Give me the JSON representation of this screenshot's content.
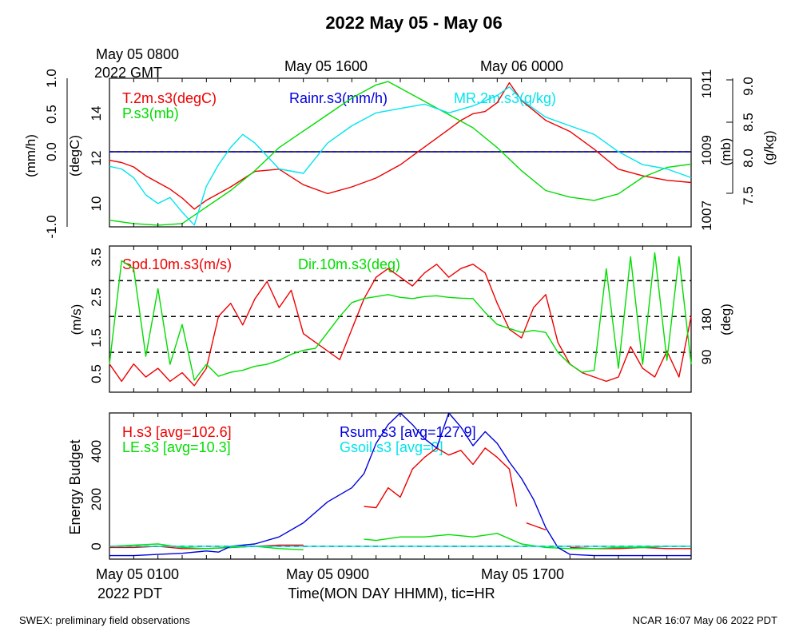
{
  "title": "2022 May 05 - May 06",
  "top_axis": {
    "ticks": [
      "May 05 0800",
      "May 05 1600",
      "May 06 0000"
    ],
    "first_tick_year": "2022 GMT"
  },
  "bottom_axis": {
    "ticks": [
      "May 05 0100",
      "May 05 0900",
      "May 05 1700"
    ],
    "first_tick_year": "2022 PDT",
    "label": "Time(MON DAY HHMM), tic=HR"
  },
  "footer": {
    "left": "SWEX: preliminary field observations",
    "right": "NCAR 16:07 May 06 2022 PDT"
  },
  "colors": {
    "red": "#ee0000",
    "green": "#00dd00",
    "blue": "#0000dd",
    "cyan": "#00e5ee",
    "black": "#000000"
  },
  "chart_data": [
    {
      "type": "line",
      "x_range_hours": [
        0,
        24
      ],
      "x_start": "May 05 0030 PDT",
      "axes": {
        "left_outer": {
          "label": "(mm/h)",
          "ticks": [
            "-1.0",
            "0.0",
            "0.5",
            "1.0"
          ],
          "range": [
            -1,
            1
          ]
        },
        "left_inner": {
          "label": "(degC)",
          "ticks": [
            "10",
            "12",
            "14"
          ],
          "range": [
            9,
            15.7
          ]
        },
        "right_inner": {
          "label": "(mb)",
          "ticks": [
            "1007",
            "1009",
            "1011"
          ],
          "range": [
            1006.9,
            1011.4
          ]
        },
        "right_outer": {
          "label": "(g/kg)",
          "ticks": [
            "7.5",
            "8.0",
            "8.5",
            "9.0"
          ],
          "range": [
            7.38,
            9.1
          ]
        }
      },
      "legend": [
        "T.2m.s3(degC)",
        "P.s3(mb)",
        "Rainr.s3(mm/h)",
        "MR.2m.s3(g/kg)"
      ],
      "series": [
        {
          "name": "T.2m.s3(degC)",
          "color": "red",
          "axis": "left_inner",
          "x": [
            0,
            0.5,
            1,
            1.5,
            2,
            2.5,
            3,
            3.5,
            4,
            5,
            6,
            7,
            8,
            9,
            10,
            11,
            12,
            13,
            14,
            14.5,
            15,
            15.5,
            16,
            16.5,
            17,
            18,
            19,
            20,
            21,
            22,
            23,
            24
          ],
          "values": [
            12.0,
            11.9,
            11.7,
            11.3,
            11.0,
            10.7,
            10.3,
            9.8,
            10.2,
            10.8,
            11.5,
            11.6,
            10.9,
            10.5,
            10.8,
            11.2,
            11.8,
            12.6,
            13.4,
            13.8,
            14.1,
            14.2,
            14.6,
            15.5,
            14.7,
            13.8,
            13.3,
            12.5,
            11.6,
            11.3,
            11.1,
            11.0
          ]
        },
        {
          "name": "P.s3(mb)",
          "color": "green",
          "axis": "right_inner",
          "x": [
            0,
            1,
            2,
            3,
            4,
            5,
            6,
            7,
            8,
            9,
            10,
            11,
            11.5,
            12,
            13,
            14,
            15,
            16,
            17,
            18,
            19,
            20,
            21,
            22,
            23,
            24
          ],
          "values": [
            1007.1,
            1007.0,
            1006.95,
            1007.0,
            1007.5,
            1008.0,
            1008.6,
            1009.3,
            1009.8,
            1010.3,
            1010.8,
            1011.2,
            1011.3,
            1011.1,
            1010.7,
            1010.3,
            1009.9,
            1009.3,
            1008.6,
            1008.0,
            1007.8,
            1007.7,
            1007.9,
            1008.4,
            1008.7,
            1008.8
          ]
        },
        {
          "name": "Rainr.s3(mm/h)",
          "color": "blue",
          "axis": "left_outer",
          "x": [
            0,
            24
          ],
          "values": [
            0.0,
            0.0
          ]
        },
        {
          "name": "MR.2m.s3(g/kg)",
          "color": "cyan",
          "axis": "right_outer",
          "x": [
            0,
            0.5,
            1,
            1.5,
            2,
            2.5,
            3,
            3.5,
            4,
            4.5,
            5,
            5.5,
            6,
            7,
            8,
            9,
            10,
            11,
            12,
            13,
            14,
            15,
            16,
            16.5,
            17,
            18,
            19,
            20,
            21,
            22,
            23,
            24
          ],
          "values": [
            8.08,
            8.05,
            7.95,
            7.75,
            7.65,
            7.72,
            7.55,
            7.4,
            7.85,
            8.1,
            8.3,
            8.45,
            8.35,
            8.05,
            8.0,
            8.35,
            8.55,
            8.7,
            8.75,
            8.8,
            8.7,
            8.78,
            8.9,
            9.0,
            8.85,
            8.65,
            8.55,
            8.45,
            8.25,
            8.1,
            8.05,
            7.95
          ]
        }
      ]
    },
    {
      "type": "line",
      "x_range_hours": [
        0,
        24
      ],
      "axes": {
        "left": {
          "label": "(m/s)",
          "ticks": [
            "0.5",
            "1.5",
            "2.5",
            "3.5"
          ],
          "range": [
            0.25,
            3.62
          ]
        },
        "right": {
          "label": "(deg)",
          "ticks": [
            "90",
            "180"
          ],
          "range": [
            -10,
            357
          ]
        }
      },
      "reference_lines_deg": [
        90,
        180,
        270
      ],
      "legend": [
        "Spd.10m.s3(m/s)",
        "Dir.10m.s3(deg)"
      ],
      "series": [
        {
          "name": "Spd.10m.s3(m/s)",
          "color": "red",
          "axis": "left",
          "x": [
            0,
            0.5,
            1,
            1.5,
            2,
            2.5,
            3,
            3.5,
            4,
            4.5,
            5,
            5.5,
            6,
            6.5,
            7,
            7.5,
            8,
            8.5,
            9,
            9.5,
            10,
            10.5,
            11,
            11.5,
            12,
            12.5,
            13,
            13.5,
            14,
            14.5,
            15,
            15.5,
            16,
            16.5,
            17,
            17.5,
            18,
            18.5,
            19,
            19.5,
            20,
            20.5,
            21,
            21.5,
            22,
            22.5,
            23,
            23.5,
            24
          ],
          "values": [
            0.9,
            0.5,
            0.9,
            0.6,
            0.8,
            0.5,
            0.7,
            0.4,
            0.8,
            2.0,
            2.3,
            1.8,
            2.4,
            2.8,
            2.2,
            2.6,
            1.6,
            1.4,
            1.2,
            1.0,
            1.7,
            2.4,
            2.9,
            3.1,
            2.9,
            2.7,
            3.0,
            3.2,
            2.9,
            3.1,
            3.2,
            3.0,
            2.3,
            1.7,
            1.5,
            2.2,
            2.5,
            1.4,
            0.9,
            0.7,
            0.6,
            0.5,
            0.6,
            1.3,
            0.8,
            0.6,
            1.2,
            0.6,
            2.0
          ]
        },
        {
          "name": "Dir.10m.s3(deg)",
          "color": "green",
          "axis": "right",
          "x": [
            0,
            0.5,
            1,
            1.5,
            2,
            2.5,
            3,
            3.5,
            4,
            4.5,
            5,
            5.5,
            6,
            6.5,
            7,
            7.5,
            8,
            8.5,
            9,
            9.5,
            10,
            10.5,
            11,
            11.5,
            12,
            12.5,
            13,
            13.5,
            14,
            14.5,
            15,
            15.5,
            16,
            16.5,
            17,
            17.5,
            18,
            18.5,
            19,
            19.5,
            20,
            20.5,
            21,
            21.5,
            22,
            22.5,
            23,
            23.5,
            24
          ],
          "values": [
            60,
            320,
            300,
            80,
            250,
            60,
            160,
            20,
            60,
            30,
            40,
            45,
            55,
            60,
            70,
            85,
            95,
            100,
            140,
            180,
            215,
            225,
            230,
            235,
            228,
            225,
            230,
            232,
            228,
            226,
            225,
            190,
            160,
            150,
            140,
            145,
            140,
            90,
            60,
            40,
            45,
            300,
            50,
            330,
            60,
            340,
            70,
            330,
            60
          ]
        }
      ]
    },
    {
      "type": "line",
      "x_range_hours": [
        0,
        24
      ],
      "axes": {
        "left": {
          "label": "Energy Budget",
          "ticks": [
            "0",
            "200",
            "400"
          ],
          "range": [
            -55,
            570
          ]
        }
      },
      "reference_lines": [
        0
      ],
      "legend": [
        "H.s3 [avg=102.6]",
        "LE.s3 [avg=10.3]",
        "Rsum.s3 [avg=127.9]",
        "Gsoil.s3 [avg=0]"
      ],
      "series": [
        {
          "name": "H.s3 [avg=102.6]",
          "color": "red",
          "x": [
            0,
            1,
            2,
            3,
            4,
            5,
            6,
            7,
            8,
            null,
            10.5,
            11,
            11.5,
            12,
            12.5,
            13,
            13.5,
            14,
            14.5,
            15,
            15.5,
            16,
            16.5,
            16.8,
            null,
            17.2,
            18,
            null,
            19,
            20,
            21,
            22,
            23,
            24
          ],
          "values": [
            -5,
            -5,
            0,
            -10,
            -10,
            -5,
            0,
            5,
            5,
            null,
            170,
            165,
            250,
            210,
            330,
            380,
            420,
            390,
            410,
            350,
            420,
            380,
            330,
            170,
            null,
            100,
            70,
            null,
            -5,
            -10,
            -10,
            -5,
            -10,
            -10
          ]
        },
        {
          "name": "LE.s3 [avg=10.3]",
          "color": "green",
          "x": [
            0,
            1,
            2,
            3,
            4,
            5,
            6,
            7,
            8,
            null,
            10.5,
            11,
            12,
            13,
            14,
            15,
            16,
            17,
            18,
            19,
            20,
            21,
            22,
            23,
            24
          ],
          "values": [
            0,
            5,
            10,
            -5,
            -10,
            -5,
            0,
            -10,
            -15,
            null,
            30,
            25,
            40,
            40,
            50,
            40,
            55,
            10,
            -5,
            -10,
            -10,
            -5,
            -5,
            0,
            0
          ]
        },
        {
          "name": "Rsum.s3 [avg=127.9]",
          "color": "blue",
          "x": [
            0,
            1,
            2,
            3,
            4,
            4.5,
            5,
            6,
            7,
            8,
            9,
            10,
            10.5,
            11,
            11.5,
            12,
            12.5,
            13,
            13.5,
            14,
            14.5,
            15,
            15.5,
            16,
            16.5,
            17,
            17.5,
            18,
            18.5,
            19,
            20,
            21,
            22,
            23,
            24
          ],
          "values": [
            -40,
            -40,
            -35,
            -30,
            -20,
            -25,
            0,
            10,
            40,
            100,
            190,
            250,
            310,
            440,
            520,
            570,
            520,
            460,
            420,
            570,
            510,
            430,
            490,
            440,
            360,
            290,
            200,
            80,
            -5,
            -35,
            -40,
            -40,
            -40,
            -40,
            -40
          ]
        },
        {
          "name": "Gsoil.s3 [avg=0]",
          "color": "cyan",
          "x": [
            0,
            24
          ],
          "values": [
            0,
            0
          ]
        }
      ]
    }
  ]
}
